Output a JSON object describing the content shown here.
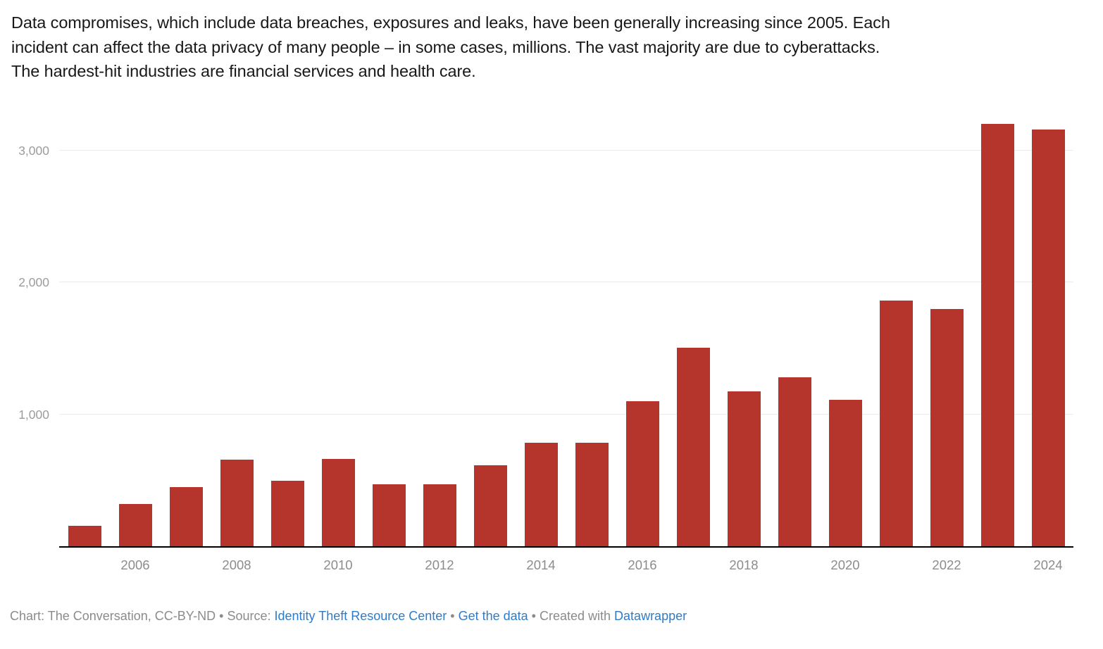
{
  "header": {
    "lines": [
      "Data compromises, which include data breaches, exposures and leaks, have been generally increasing since 2005. Each",
      "incident can affect the data privacy of many people – in some cases, millions. The vast majority are due to cyberattacks.",
      "The hardest-hit industries are financial services and health care."
    ]
  },
  "chart_data": {
    "type": "bar",
    "categories": [
      "2005",
      "2006",
      "2007",
      "2008",
      "2009",
      "2010",
      "2011",
      "2012",
      "2013",
      "2014",
      "2015",
      "2016",
      "2017",
      "2018",
      "2019",
      "2020",
      "2021",
      "2022",
      "2023",
      "2024"
    ],
    "values": [
      157,
      321,
      446,
      656,
      498,
      662,
      470,
      471,
      614,
      783,
      785,
      1099,
      1506,
      1175,
      1279,
      1108,
      1860,
      1801,
      3202,
      3158
    ],
    "title": "",
    "xlabel": "",
    "ylabel": "",
    "ylim": [
      0,
      3340
    ],
    "y_ticks": [
      {
        "value": 1000,
        "label": "1,000"
      },
      {
        "value": 2000,
        "label": "2,000"
      },
      {
        "value": 3000,
        "label": "3,000"
      }
    ],
    "x_tick_labels": [
      "2006",
      "2008",
      "2010",
      "2012",
      "2014",
      "2016",
      "2018",
      "2020",
      "2022",
      "2024"
    ],
    "bar_color": "#b5342b",
    "gridline_color": "#ebebeb",
    "axis_line_color": "#000000",
    "grid": true,
    "legend": "none"
  },
  "footer": {
    "credit": "Chart: The Conversation, CC-BY-ND",
    "sep1": " • ",
    "source_label": "Source: ",
    "source_link": "Identity Theft Resource Center",
    "sep2": " • ",
    "data_link": "Get the data",
    "sep3": " • ",
    "created_label": "Created with ",
    "created_link": "Datawrapper"
  }
}
